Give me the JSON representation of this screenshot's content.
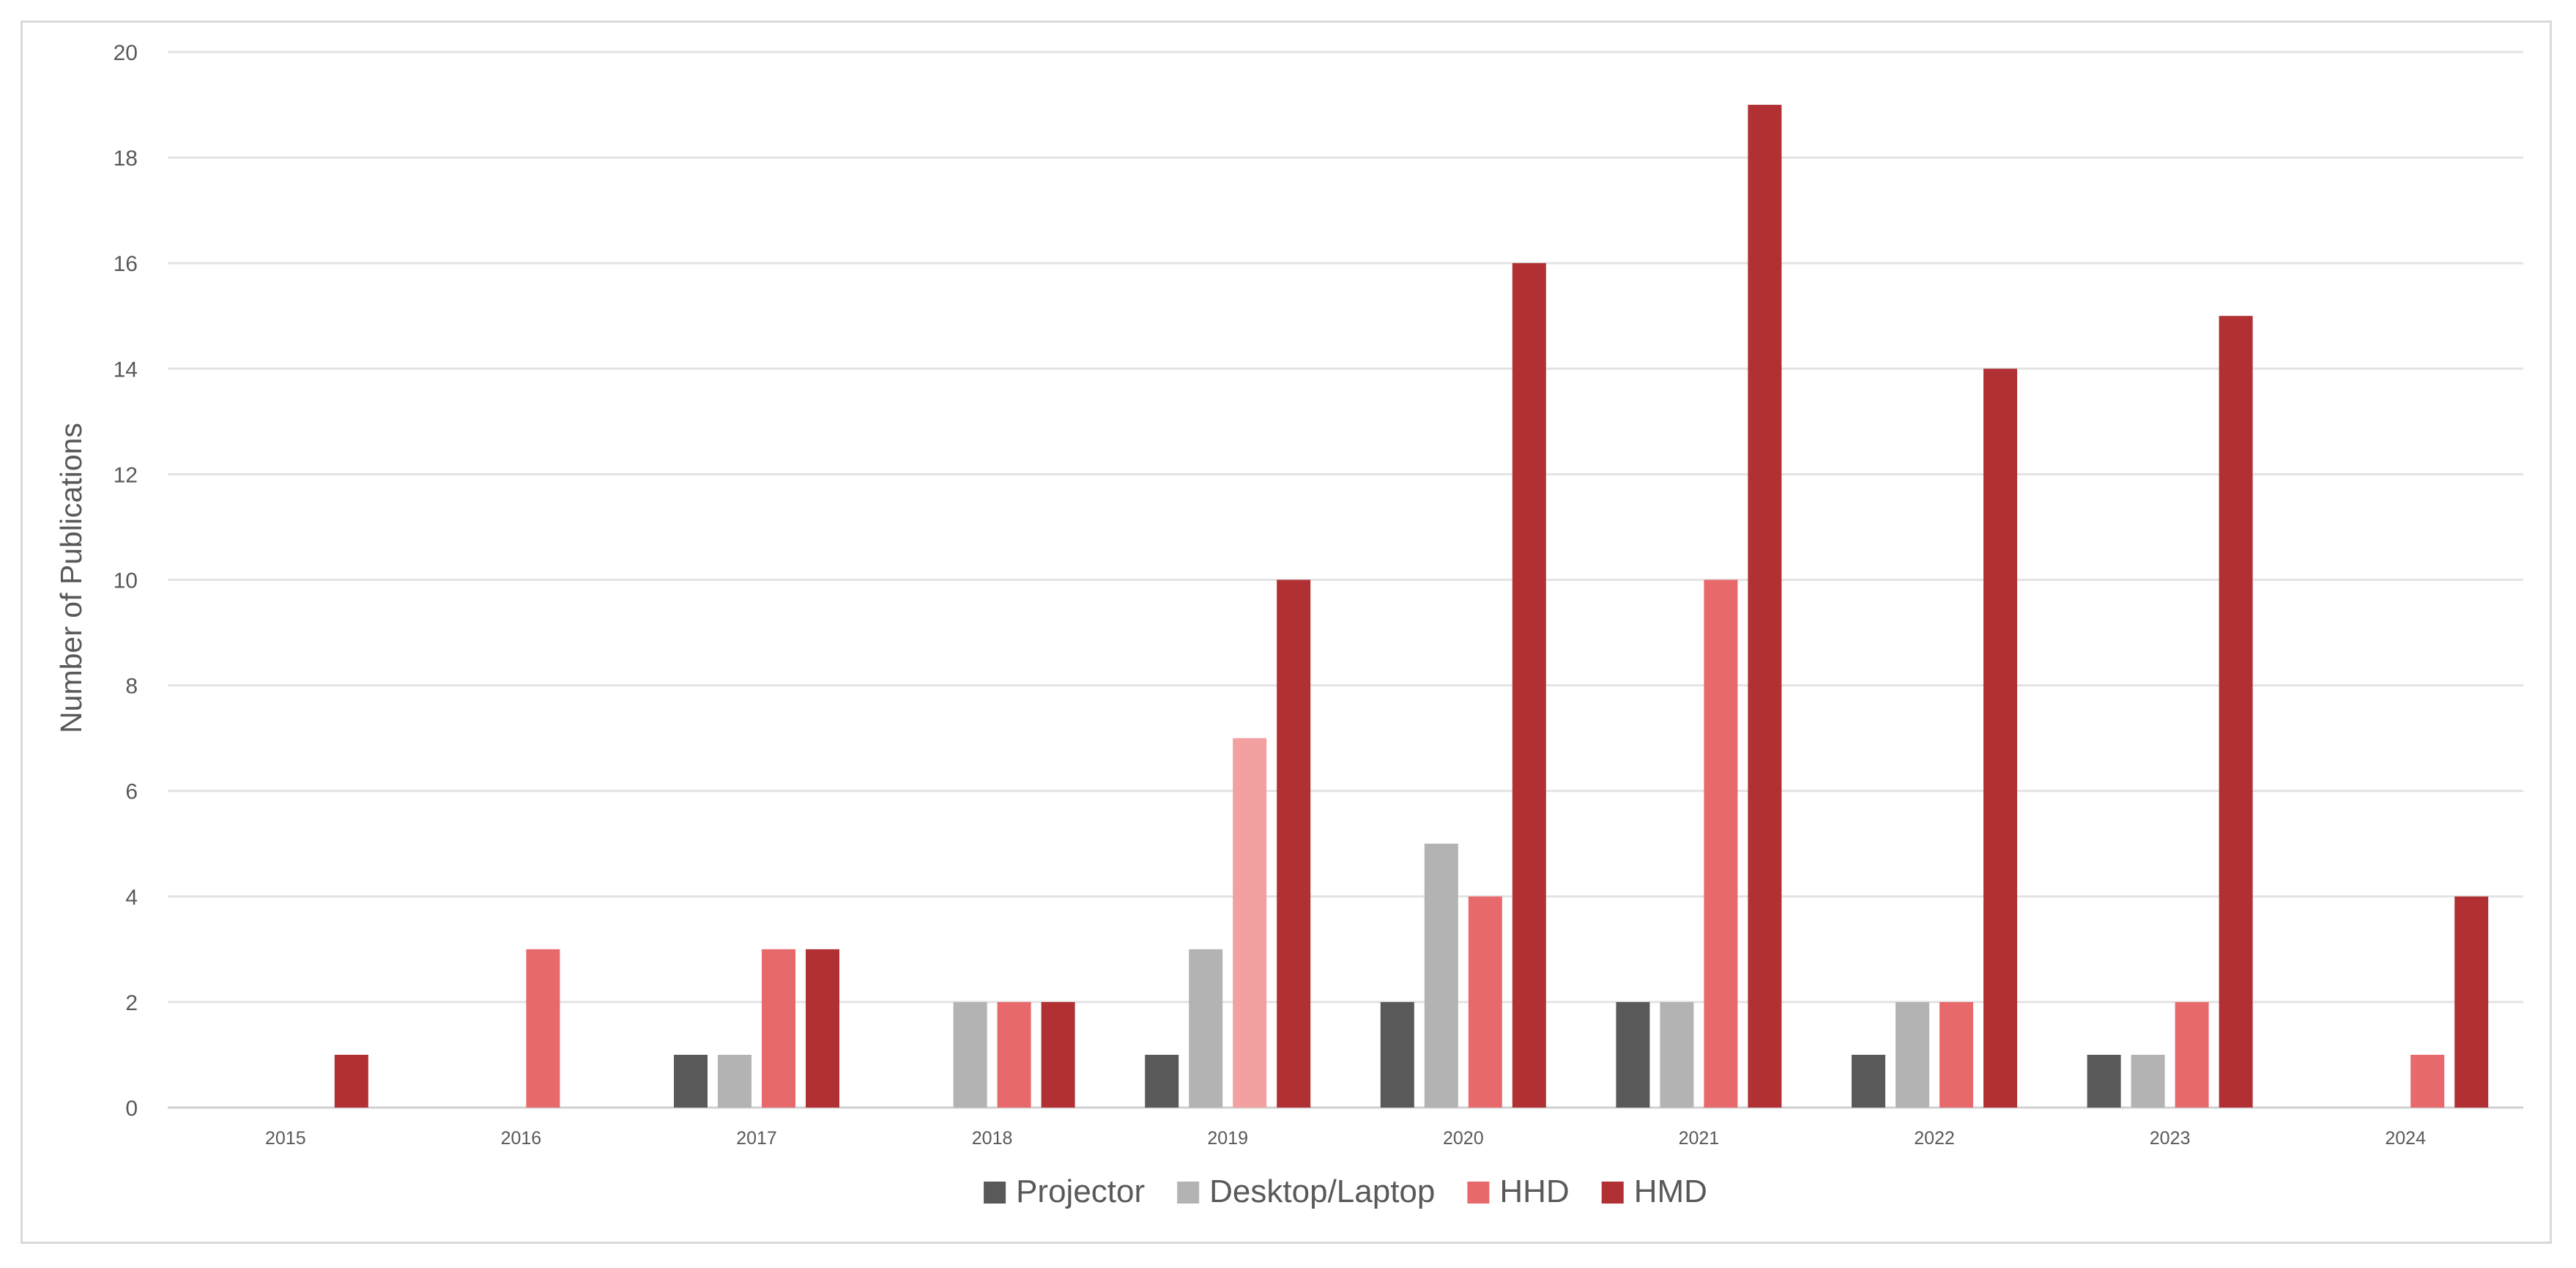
{
  "chart_data": {
    "type": "bar",
    "title": "",
    "xlabel": "",
    "ylabel": "Number of Publications",
    "ylim": [
      0,
      20
    ],
    "yticks": [
      "0",
      "2",
      "4",
      "6",
      "8",
      "10",
      "12",
      "14",
      "16",
      "18",
      "20"
    ],
    "grid": "horizontal",
    "legend_position": "bottom",
    "categories": [
      "2015",
      "2016",
      "2017",
      "2018",
      "2019",
      "2020",
      "2021",
      "2022",
      "2023",
      "2024"
    ],
    "series": [
      {
        "name": "Projector",
        "color": "#595959",
        "values": [
          0,
          0,
          1,
          0,
          1,
          2,
          2,
          1,
          1,
          0
        ]
      },
      {
        "name": "Desktop/Laptop",
        "color": "#b3b3b3",
        "values": [
          0,
          0,
          1,
          2,
          3,
          5,
          2,
          2,
          1,
          0
        ]
      },
      {
        "name": "HHD",
        "color": "#e8696b",
        "values": [
          0,
          3,
          3,
          2,
          7,
          4,
          10,
          2,
          2,
          1
        ]
      },
      {
        "name": "HMD",
        "color": "#b03034",
        "values": [
          1,
          0,
          3,
          2,
          10,
          16,
          19,
          14,
          15,
          4
        ]
      }
    ],
    "highlight": {
      "series": "HHD",
      "category": "2019",
      "color": "#f2a0a0"
    }
  }
}
